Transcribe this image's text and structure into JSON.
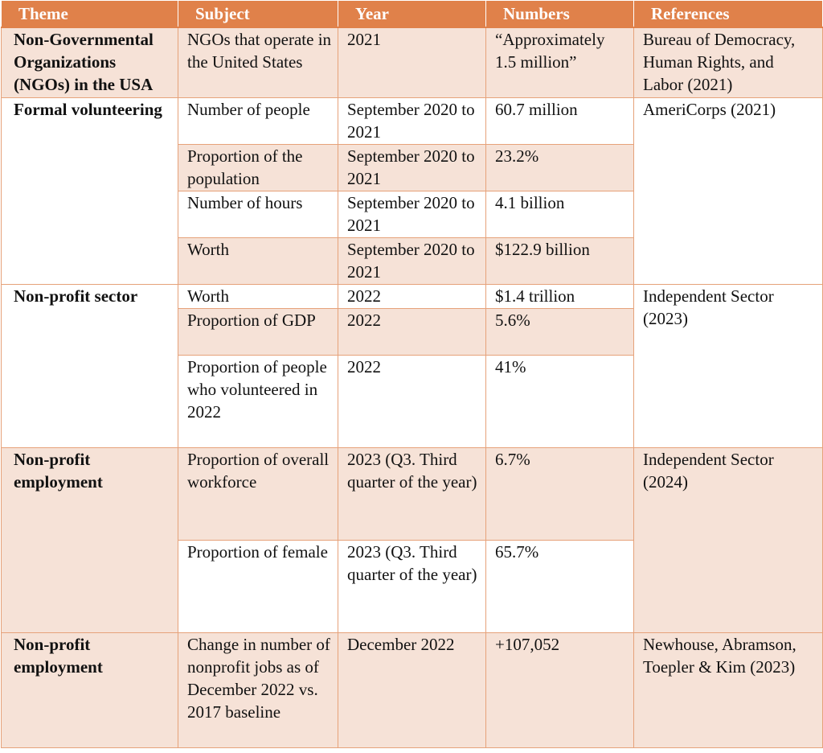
{
  "headers": [
    "Theme",
    "Subject",
    "Year",
    "Numbers",
    "References"
  ],
  "groups": {
    "ngos": {
      "theme": "Non-Governmental Organizations (NGOs) in the USA",
      "reference": "Bureau of Democracy, Human Rights, and Labor (2021)",
      "rows": [
        {
          "subject": "NGOs that operate in the United States",
          "year": "2021",
          "number": "“Approximately 1.5 million”"
        }
      ]
    },
    "formal_volunteering": {
      "theme": "Formal volunteering",
      "reference": "AmeriCorps (2021)",
      "rows": [
        {
          "subject": "Number of people",
          "year": "September 2020 to 2021",
          "number": "60.7 million"
        },
        {
          "subject": "Proportion of the population",
          "year": "September 2020 to 2021",
          "number": "23.2%"
        },
        {
          "subject": "Number of hours",
          "year": "September 2020 to 2021",
          "number": "4.1 billion"
        },
        {
          "subject": "Worth",
          "year": "September 2020 to 2021",
          "number": "$122.9 billion"
        }
      ]
    },
    "nonprofit_sector": {
      "theme": "Non-profit sector",
      "reference": "Independent Sector (2023)",
      "rows": [
        {
          "subject": "Worth",
          "year": "2022",
          "number": "$1.4 trillion"
        },
        {
          "subject": "Proportion of GDP",
          "year": "2022",
          "number": "5.6%"
        },
        {
          "subject": "Proportion of people who volunteered in 2022",
          "year": "2022",
          "number": "41%"
        }
      ]
    },
    "nonprofit_employment_2024": {
      "theme": "Non-profit employment",
      "reference": "Independent Sector (2024)",
      "rows": [
        {
          "subject": "Proportion of overall workforce",
          "year": "2023 (Q3. Third quarter of the year)",
          "number": "6.7%"
        },
        {
          "subject": "Proportion of female",
          "year": "2023 (Q3. Third quarter of the year)",
          "number": "65.7%"
        }
      ]
    },
    "nonprofit_employment_2023": {
      "theme": "Non-profit employment",
      "reference": "Newhouse, Abramson, Toepler & Kim (2023)",
      "rows": [
        {
          "subject": "Change in number of nonprofit jobs as of December 2022 vs. 2017 baseline",
          "year": "December 2022",
          "number": "+107,052"
        }
      ]
    }
  },
  "colors": {
    "header_bg": "#e0814a",
    "row_tint": "#f6e2d7",
    "border": "#e6a27a"
  }
}
